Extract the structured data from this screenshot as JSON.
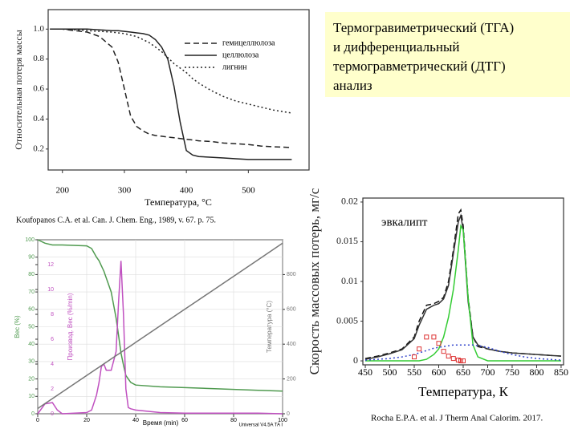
{
  "title_lines": [
    "Термогравиметрический (ТГА)",
    "и дифференциальный",
    "термогравметрический (ДТГ)",
    "анализ"
  ],
  "captions": [
    "Koufopanos C.A. et al. Can. J. Chem. Eng., 1989, v. 67. p. 75.",
    "Rocha E.P.A. et al. J Therm Anal Calorim. 2017."
  ],
  "chart_data": [
    {
      "type": "line",
      "x_label": "Температура, °С",
      "y_label": "Относительная потеря массы",
      "x": [
        180,
        200,
        220,
        240,
        260,
        280,
        290,
        300,
        310,
        320,
        330,
        340,
        350,
        360,
        370,
        380,
        390,
        400,
        410,
        420,
        440,
        460,
        480,
        500,
        520,
        540,
        570
      ],
      "xlim": [
        177,
        598
      ],
      "xticks": [
        200,
        300,
        400,
        500
      ],
      "ylim": [
        0.06,
        1.13
      ],
      "yticks": [
        {
          "value": 1,
          "label": "1.0"
        },
        0.8,
        0.6,
        0.4,
        0.2
      ],
      "legend": "upper right",
      "series": [
        {
          "name": "гемицеллюлоза",
          "color": "#222222",
          "style": "dashed",
          "values": [
            1,
            1,
            0.99,
            0.98,
            0.95,
            0.88,
            0.78,
            0.6,
            0.42,
            0.35,
            0.32,
            0.3,
            0.29,
            0.285,
            0.28,
            0.275,
            0.27,
            0.265,
            0.26,
            0.255,
            0.25,
            0.24,
            0.235,
            0.23,
            0.22,
            0.215,
            0.21
          ]
        },
        {
          "name": "целлюлоза",
          "color": "#222222",
          "style": "solid",
          "values": [
            1,
            1,
            1,
            1,
            0.995,
            0.99,
            0.99,
            0.985,
            0.98,
            0.975,
            0.97,
            0.96,
            0.93,
            0.88,
            0.8,
            0.62,
            0.38,
            0.19,
            0.16,
            0.15,
            0.145,
            0.14,
            0.135,
            0.13,
            0.13,
            0.13,
            0.13
          ]
        },
        {
          "name": "лигнин",
          "color": "#222222",
          "style": "dotted",
          "values": [
            1,
            1,
            0.995,
            0.99,
            0.985,
            0.98,
            0.975,
            0.97,
            0.96,
            0.95,
            0.93,
            0.91,
            0.88,
            0.85,
            0.81,
            0.77,
            0.74,
            0.71,
            0.67,
            0.64,
            0.59,
            0.55,
            0.52,
            0.5,
            0.48,
            0.46,
            0.44
          ]
        }
      ]
    },
    {
      "type": "line",
      "x_label": "Время (min)",
      "y_label": "Вес (%)",
      "y2_label": "Производ. Вес (%/min)",
      "y3_label": "Температура (°C)",
      "footer": "Universal V4.5A TA I",
      "x": [
        0,
        3,
        6,
        8,
        10,
        20,
        22,
        24,
        25,
        26,
        27,
        28,
        30,
        32,
        33,
        34,
        35,
        36,
        37,
        38,
        40,
        50,
        60,
        70,
        80,
        90,
        100
      ],
      "xlim": [
        0,
        100
      ],
      "xticks": [
        0,
        20,
        40,
        60,
        80,
        100
      ],
      "ylim": [
        0,
        100
      ],
      "yticks": [
        0,
        10,
        20,
        30,
        40,
        50,
        60,
        70,
        80,
        90,
        100
      ],
      "y2lim": [
        0,
        14
      ],
      "y2ticks": [
        0,
        2,
        4,
        6,
        8,
        10,
        12
      ],
      "y3lim": [
        0,
        1000
      ],
      "y3ticks": [
        0,
        200,
        400,
        600,
        800
      ],
      "grid": true,
      "series": [
        {
          "color": "#4f9a4f",
          "style": "solid",
          "values": [
            100,
            98,
            97,
            97,
            97,
            96.5,
            95,
            90,
            88,
            85,
            82,
            78,
            70,
            55,
            45,
            35,
            28,
            22,
            20,
            18,
            16.5,
            15.5,
            15,
            14.5,
            14,
            13.5,
            13
          ]
        },
        {
          "color": "#c050c0",
          "style": "solid",
          "axis": "y2",
          "values": [
            0,
            0.8,
            0.9,
            0.3,
            0,
            0.1,
            0.3,
            1.5,
            2.5,
            3.8,
            4,
            3.5,
            3.5,
            5,
            9,
            12.3,
            8,
            2,
            0.5,
            0.4,
            0.3,
            0.1,
            0.05,
            0.05,
            0.05,
            0.05,
            0
          ]
        },
        {
          "color": "#777777",
          "style": "solid",
          "axis": "y3",
          "values": [
            30,
            58.5,
            87,
            106,
            125,
            220,
            239,
            258,
            267.5,
            277,
            286.5,
            296,
            315,
            334,
            343.5,
            353,
            362.5,
            372,
            381.5,
            391,
            410,
            505,
            600,
            695,
            790,
            885,
            980
          ]
        }
      ]
    },
    {
      "type": "line",
      "x_label": "Температура,  К",
      "y_label": "Скорость массовых потерь, мг/с",
      "annotation": "эвкалипт",
      "x": [
        450,
        475,
        500,
        525,
        550,
        560,
        575,
        590,
        600,
        610,
        620,
        630,
        640,
        645,
        650,
        660,
        670,
        680,
        700,
        725,
        750,
        775,
        800,
        825,
        850
      ],
      "xlim": [
        445,
        855
      ],
      "xticks": [
        450,
        500,
        550,
        600,
        650,
        700,
        750,
        800,
        850
      ],
      "ylim": [
        -0.0005,
        0.0205
      ],
      "yticks": [
        0,
        0.005,
        0.01,
        0.015,
        0.02
      ],
      "series": [
        {
          "color": "#111111",
          "style": "dashed",
          "values": [
            0.0003,
            0.0006,
            0.001,
            0.0015,
            0.003,
            0.005,
            0.007,
            0.0072,
            0.0075,
            0.008,
            0.01,
            0.014,
            0.0185,
            0.019,
            0.017,
            0.008,
            0.003,
            0.0018,
            0.0015,
            0.0012,
            0.001,
            0.0009,
            0.0008,
            0.0007,
            0.0006
          ]
        },
        {
          "color": "#333333",
          "style": "solid",
          "values": [
            0.0002,
            0.0005,
            0.0009,
            0.0014,
            0.0028,
            0.0045,
            0.0065,
            0.007,
            0.0072,
            0.0078,
            0.0095,
            0.0135,
            0.0175,
            0.0183,
            0.0165,
            0.0075,
            0.003,
            0.002,
            0.0015,
            0.0012,
            0.001,
            0.0009,
            0.0008,
            0.0007,
            0.0006
          ]
        },
        {
          "color": "#33cc33",
          "style": "solid",
          "values": [
            0,
            0,
            0,
            0,
            0,
            0,
            0.0002,
            0.0008,
            0.0015,
            0.003,
            0.0055,
            0.009,
            0.014,
            0.017,
            0.0165,
            0.008,
            0.002,
            0.0005,
            0,
            0,
            0,
            0,
            0,
            0,
            0
          ]
        },
        {
          "color": "#3344cc",
          "style": "dotted",
          "values": [
            0.0001,
            0.0002,
            0.0003,
            0.0005,
            0.0008,
            0.001,
            0.0013,
            0.0016,
            0.0017,
            0.0018,
            0.0019,
            0.002,
            0.002,
            0.002,
            0.002,
            0.002,
            0.002,
            0.0019,
            0.0017,
            0.0012,
            0.0008,
            0.0005,
            0.0003,
            0.0002,
            0.0001
          ]
        },
        {
          "color": "#dd3333",
          "style": "none",
          "marker": "square",
          "values": [
            null,
            null,
            null,
            null,
            0.0005,
            0.0015,
            0.003,
            0.003,
            0.0022,
            0.0012,
            0.0006,
            0.0003,
            0.0001,
            0,
            0,
            null,
            null,
            null,
            null,
            null,
            null,
            null,
            null,
            null,
            null
          ]
        }
      ]
    }
  ]
}
